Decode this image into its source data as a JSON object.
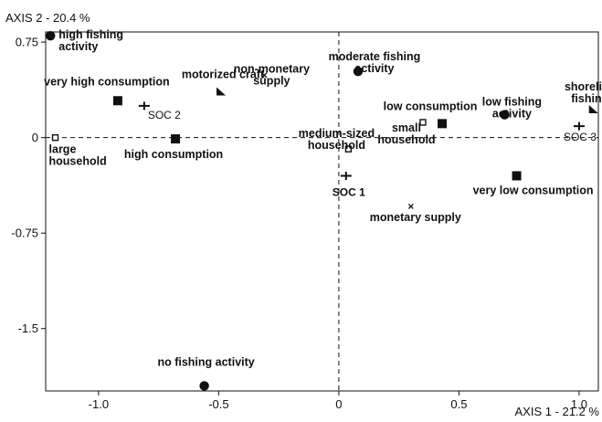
{
  "chart_data": {
    "type": "scatter",
    "title": "",
    "xlabel": "AXIS 1  -  21.2 %",
    "ylabel": "AXIS 2  -  20.4 %",
    "xlim": [
      -1.22,
      1.08
    ],
    "ylim": [
      -1.99,
      0.83
    ],
    "xticks": [
      -1.0,
      -0.5,
      0,
      0.5,
      1.0
    ],
    "xtick_labels": [
      "-1.0",
      "-0.5",
      "0",
      "0.5",
      "1.0"
    ],
    "yticks": [
      0.75,
      0,
      -0.75,
      -1.5
    ],
    "ytick_labels": [
      "0.75",
      "0",
      "-0.75",
      "-1.5"
    ],
    "reference_lines": {
      "x": 0,
      "y": 0,
      "style": "dashed"
    },
    "points": [
      {
        "label": "high fishing\nactivity",
        "x": -1.2,
        "y": 0.8,
        "marker": "circle"
      },
      {
        "label": "moderate fishing\nactivity",
        "x": 0.08,
        "y": 0.52,
        "marker": "circle"
      },
      {
        "label": "low fishing\nactivity",
        "x": 0.69,
        "y": 0.18,
        "marker": "circle"
      },
      {
        "label": "no fishing activity",
        "x": -0.56,
        "y": -1.95,
        "marker": "circle"
      },
      {
        "label": "very high consumption",
        "x": -0.92,
        "y": 0.29,
        "marker": "square"
      },
      {
        "label": "high consumption",
        "x": -0.68,
        "y": -0.01,
        "marker": "square"
      },
      {
        "label": "low consumption",
        "x": 0.43,
        "y": 0.11,
        "marker": "square"
      },
      {
        "label": "very low consumption",
        "x": 0.74,
        "y": -0.3,
        "marker": "square"
      },
      {
        "label": "large\nhousehold",
        "x": -1.18,
        "y": 0.0,
        "marker": "open-square"
      },
      {
        "label": "medium-sized\nhousehold",
        "x": 0.04,
        "y": -0.09,
        "marker": "open-square"
      },
      {
        "label": "small\nhousehold",
        "x": 0.35,
        "y": 0.12,
        "marker": "open-square"
      },
      {
        "label": "motorized craft",
        "x": -0.49,
        "y": 0.36,
        "marker": "triangle"
      },
      {
        "label": "shoreline\nfishing",
        "x": 1.06,
        "y": 0.22,
        "marker": "triangle"
      },
      {
        "label": "non-monetary\nsupply",
        "x": -0.31,
        "y": 0.49,
        "marker": "x"
      },
      {
        "label": "monetary supply",
        "x": 0.3,
        "y": -0.54,
        "marker": "x"
      },
      {
        "label": "SOC 1",
        "x": 0.03,
        "y": -0.3,
        "marker": "plus"
      },
      {
        "label": "SOC 2",
        "x": -0.81,
        "y": 0.25,
        "marker": "plus"
      },
      {
        "label": "SOC 3",
        "x": 1.0,
        "y": 0.09,
        "marker": "plus"
      }
    ]
  }
}
